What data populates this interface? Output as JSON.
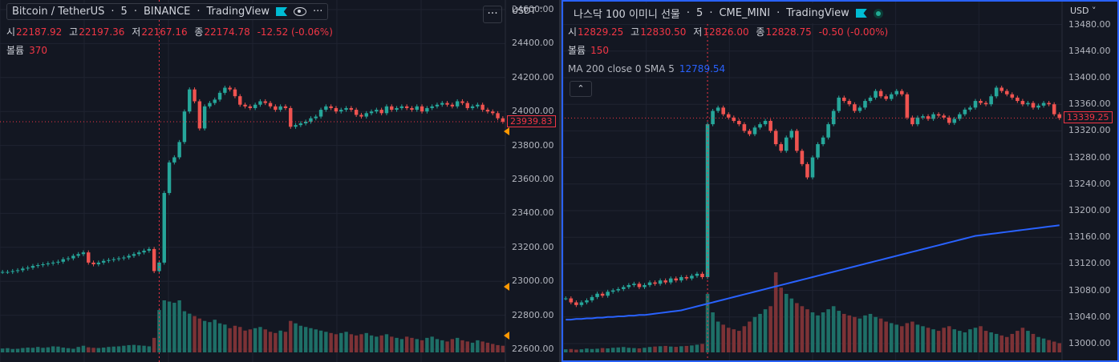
{
  "colors": {
    "bg": "#131722",
    "up": "#26a69a",
    "down": "#ef5350",
    "vol_up": "#1e6f67",
    "vol_down": "#7c3236",
    "grid": "#1f2330",
    "ma": "#2962ff",
    "crosshair": "#f23645",
    "marker": "#ff9800",
    "frame": "#2962ff"
  },
  "icons": {
    "eye": "eye-icon",
    "more": "more-icon",
    "flag": "flag-icon",
    "live": "live-dot-icon",
    "collapse": "chevron-up-icon"
  },
  "left": {
    "symbol": "Bitcoin / TetherUS",
    "interval": "5",
    "exchange": "BINANCE",
    "source": "TradingView",
    "ohlc": {
      "o_label": "시",
      "o": "22187.92",
      "h_label": "고",
      "h": "22197.36",
      "l_label": "저",
      "l": "22167.16",
      "c_label": "종",
      "c": "22174.78",
      "chg": "-12.52 (-0.06%)"
    },
    "volume_label": "볼륨",
    "volume": "370",
    "currency": "USDT",
    "last_price": "23939.83",
    "more": "···"
  },
  "right": {
    "symbol": "나스닥 100 이미니 선물",
    "interval": "5",
    "exchange": "CME_MINI",
    "source": "TradingView",
    "ohlc": {
      "o_label": "시",
      "o": "12829.25",
      "h_label": "고",
      "h": "12830.50",
      "l_label": "저",
      "l": "12826.00",
      "c_label": "종",
      "c": "12828.75",
      "chg": "-0.50 (-0.00%)"
    },
    "volume_label": "볼륨",
    "volume": "150",
    "ma_label": "MA 200 close 0 SMA 5",
    "ma_value": "12789.54",
    "currency": "USD",
    "last_price": "13339.25",
    "collapse": "⌃"
  },
  "chart_data": [
    {
      "type": "candlestick",
      "title": "Bitcoin / TetherUS · 5 · BINANCE",
      "y_ticks": [
        "24600.00",
        "24400.00",
        "24200.00",
        "24000.00",
        "23800.00",
        "23600.00",
        "23400.00",
        "23200.00",
        "23000.00",
        "22800.00",
        "22600.00"
      ],
      "ylim": [
        22600,
        24600
      ],
      "close": [
        23055,
        23055,
        23060,
        23065,
        23075,
        23080,
        23090,
        23095,
        23100,
        23105,
        23110,
        23115,
        23130,
        23135,
        23150,
        23160,
        23170,
        23110,
        23100,
        23110,
        23120,
        23125,
        23130,
        23135,
        23140,
        23150,
        23160,
        23170,
        23180,
        23190,
        23060,
        23110,
        23520,
        23700,
        23730,
        23820,
        24000,
        24130,
        24060,
        23900,
        24030,
        24050,
        24070,
        24110,
        24140,
        24130,
        24090,
        24040,
        24030,
        24020,
        24040,
        24060,
        24050,
        24030,
        24010,
        24030,
        24020,
        23910,
        23920,
        23930,
        23940,
        23960,
        23970,
        24010,
        24030,
        24020,
        24000,
        24010,
        24020,
        24010,
        23980,
        23970,
        23990,
        24000,
        24010,
        23990,
        24030,
        24010,
        24020,
        24030,
        24020,
        24010,
        24030,
        24000,
        24020,
        24030,
        24040,
        24050,
        24040,
        24030,
        24060,
        24050,
        24020,
        24030,
        24040,
        24010,
        24000,
        23990,
        23960,
        23939.83
      ],
      "volume": [
        32,
        35,
        28,
        30,
        36,
        40,
        38,
        45,
        38,
        42,
        50,
        48,
        40,
        35,
        30,
        45,
        55,
        42,
        38,
        36,
        40,
        45,
        48,
        50,
        55,
        60,
        62,
        58,
        55,
        50,
        120,
        350,
        430,
        420,
        410,
        430,
        340,
        320,
        300,
        280,
        260,
        250,
        270,
        240,
        230,
        200,
        220,
        210,
        180,
        190,
        200,
        210,
        190,
        170,
        160,
        180,
        170,
        260,
        240,
        220,
        210,
        200,
        190,
        180,
        170,
        160,
        150,
        160,
        170,
        150,
        140,
        150,
        160,
        140,
        130,
        140,
        150,
        130,
        120,
        110,
        130,
        120,
        110,
        100,
        120,
        130,
        110,
        100,
        90,
        110,
        120,
        100,
        90,
        80,
        100,
        90,
        80,
        70,
        60,
        55
      ],
      "volume_unit": "relative"
    },
    {
      "type": "candlestick",
      "title": "나스닥 100 이미니 선물 · 5 · CME_MINI",
      "y_ticks": [
        "13480.00",
        "13440.00",
        "13400.00",
        "13360.00",
        "13320.00",
        "13280.00",
        "13240.00",
        "13200.00",
        "13160.00",
        "13120.00",
        "13080.00",
        "13040.00",
        "13000.00"
      ],
      "ylim": [
        13000,
        13500
      ],
      "close": [
        13068,
        13062,
        13058,
        13062,
        13065,
        13070,
        13075,
        13072,
        13078,
        13080,
        13082,
        13085,
        13088,
        13090,
        13085,
        13088,
        13092,
        13090,
        13095,
        13092,
        13098,
        13095,
        13100,
        13098,
        13102,
        13105,
        13100,
        13330,
        13350,
        13355,
        13345,
        13340,
        13335,
        13330,
        13320,
        13315,
        13325,
        13330,
        13335,
        13320,
        13300,
        13290,
        13310,
        13320,
        13290,
        13270,
        13250,
        13280,
        13300,
        13310,
        13330,
        13350,
        13370,
        13365,
        13360,
        13350,
        13355,
        13365,
        13370,
        13380,
        13372,
        13368,
        13375,
        13380,
        13375,
        13340,
        13330,
        13340,
        13342,
        13338,
        13345,
        13343,
        13340,
        13332,
        13338,
        13345,
        13352,
        13355,
        13365,
        13362,
        13360,
        13372,
        13385,
        13380,
        13375,
        13370,
        13365,
        13360,
        13362,
        13355,
        13358,
        13362,
        13360,
        13345,
        13339.25
      ],
      "ma": [
        13036,
        13036,
        13037,
        13037,
        13038,
        13038,
        13039,
        13039,
        13040,
        13040,
        13041,
        13041,
        13042,
        13042,
        13043,
        13043,
        13044,
        13045,
        13046,
        13047,
        13048,
        13049,
        13050,
        13052,
        13054,
        13056,
        13058,
        13060,
        13062,
        13064,
        13066,
        13068,
        13070,
        13072,
        13074,
        13076,
        13078,
        13080,
        13082,
        13084,
        13086,
        13088,
        13090,
        13092,
        13094,
        13096,
        13098,
        13100,
        13102,
        13104,
        13106,
        13108,
        13110,
        13112,
        13114,
        13116,
        13118,
        13120,
        13122,
        13124,
        13126,
        13128,
        13130,
        13132,
        13134,
        13136,
        13138,
        13140,
        13142,
        13144,
        13146,
        13148,
        13150,
        13152,
        13154,
        13156,
        13158,
        13160,
        13162,
        13163,
        13164,
        13165,
        13166,
        13167,
        13168,
        13169,
        13170,
        13171,
        13172,
        13173,
        13174,
        13175,
        13176,
        13177,
        13178
      ],
      "volume": [
        20,
        22,
        18,
        20,
        25,
        22,
        24,
        28,
        26,
        30,
        32,
        35,
        30,
        28,
        26,
        30,
        35,
        38,
        40,
        42,
        38,
        36,
        40,
        42,
        45,
        50,
        55,
        380,
        260,
        200,
        180,
        160,
        150,
        140,
        170,
        200,
        230,
        250,
        280,
        300,
        520,
        420,
        380,
        350,
        320,
        300,
        280,
        260,
        240,
        260,
        280,
        300,
        270,
        250,
        240,
        230,
        220,
        240,
        250,
        230,
        220,
        200,
        190,
        180,
        170,
        190,
        200,
        180,
        170,
        160,
        150,
        140,
        160,
        170,
        150,
        140,
        130,
        150,
        160,
        170,
        140,
        130,
        120,
        110,
        100,
        120,
        140,
        160,
        140,
        120,
        100,
        90,
        80,
        70,
        60
      ],
      "volume_unit": "relative"
    }
  ]
}
